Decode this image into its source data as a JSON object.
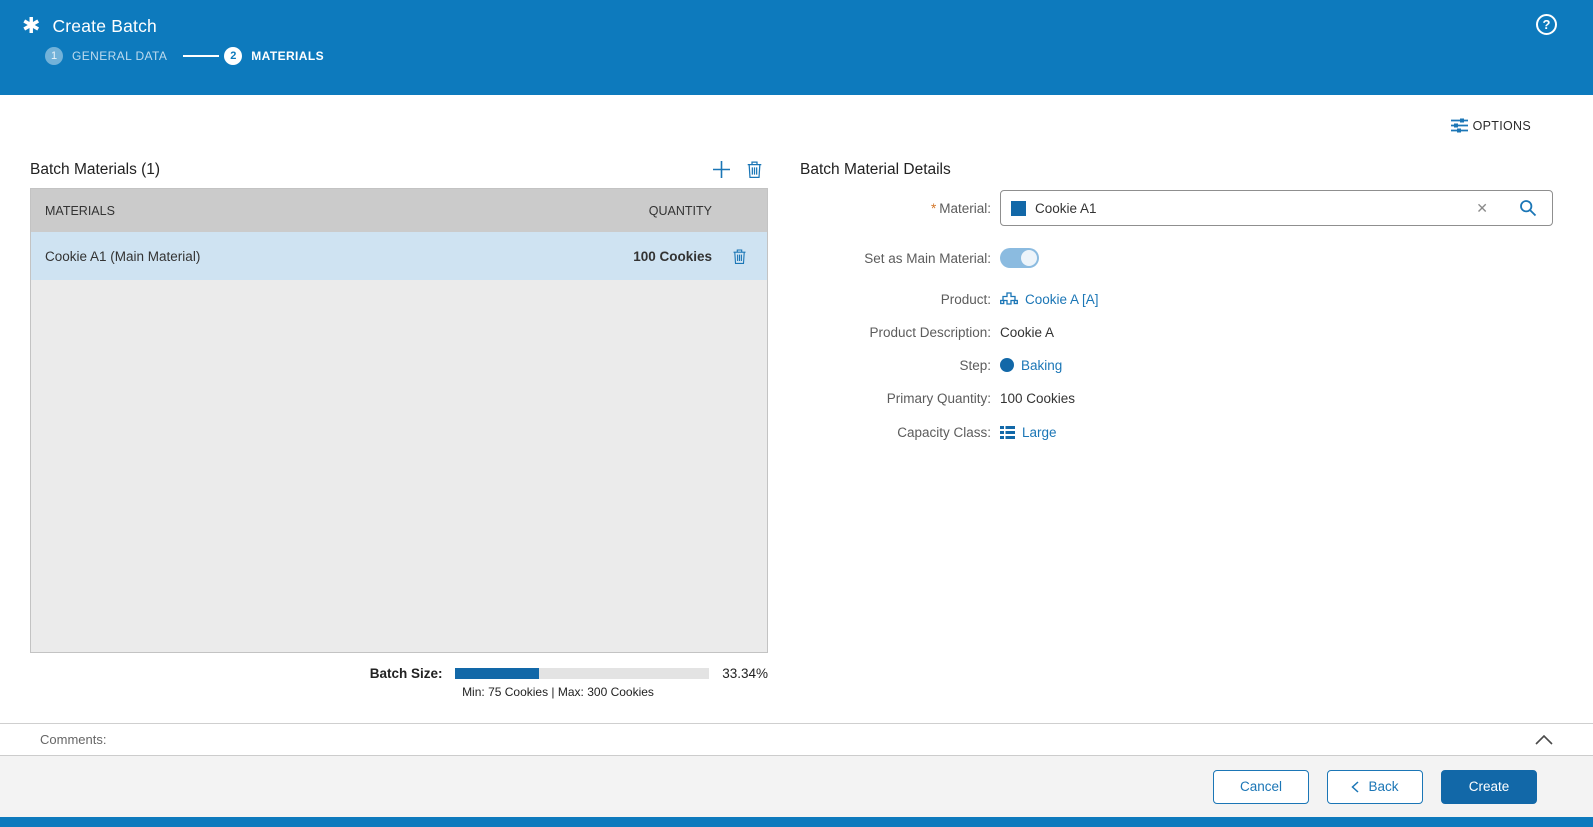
{
  "header": {
    "title": "Create Batch",
    "help_icon": "?",
    "steps": [
      {
        "number": "1",
        "label": "GENERAL DATA",
        "state": "done"
      },
      {
        "number": "2",
        "label": "MATERIALS",
        "state": "active"
      }
    ]
  },
  "toolbar": {
    "options_label": "OPTIONS"
  },
  "icons": {
    "app_icon": "✱",
    "help_icon": "?",
    "options_icon": "sliders",
    "add_icon": "plus",
    "delete_icon": "trash",
    "clear_icon": "✕",
    "search_icon": "magnifier",
    "product_icon": "product-cross",
    "step_icon": "filled-circle",
    "capacity_class_icon": "detail-list",
    "collapse_icon": "chevron-up",
    "back_icon": "chevron-left"
  },
  "materials_panel": {
    "title": "Batch Materials (1)",
    "table": {
      "columns": [
        "MATERIALS",
        "QUANTITY"
      ],
      "rows": [
        {
          "material": "Cookie A1 (Main Material)",
          "quantity": "100 Cookies",
          "selected": true
        }
      ]
    },
    "batch_size": {
      "label": "Batch Size:",
      "percent_value": 33.34,
      "percent_text": "33.34%",
      "range_text": "Min: 75 Cookies | Max: 300 Cookies"
    }
  },
  "details_panel": {
    "title": "Batch Material Details",
    "material": {
      "required_mark": "*",
      "label": "Material:",
      "value": "Cookie A1"
    },
    "main_material": {
      "label": "Set as Main Material:",
      "state": "on"
    },
    "product": {
      "label": "Product:",
      "value": "Cookie A [A]"
    },
    "product_description": {
      "label": "Product Description:",
      "value": "Cookie A"
    },
    "step": {
      "label": "Step:",
      "value": "Baking"
    },
    "primary_quantity": {
      "label": "Primary Quantity:",
      "value": "100 Cookies"
    },
    "capacity_class": {
      "label": "Capacity Class:",
      "value": "Large"
    }
  },
  "comments": {
    "label": "Comments:"
  },
  "footer": {
    "cancel_label": "Cancel",
    "back_label": "Back",
    "create_label": "Create"
  },
  "colors": {
    "header_blue": "#0d7abd",
    "action_blue": "#1b76b6",
    "primary_dark_blue": "#1268a8",
    "selected_row": "#cfe3f2",
    "table_header_gray": "#cbcbcb",
    "empty_area_gray": "#ebebeb",
    "footer_gray": "#f3f3f3",
    "required_orange": "#d3772a"
  }
}
